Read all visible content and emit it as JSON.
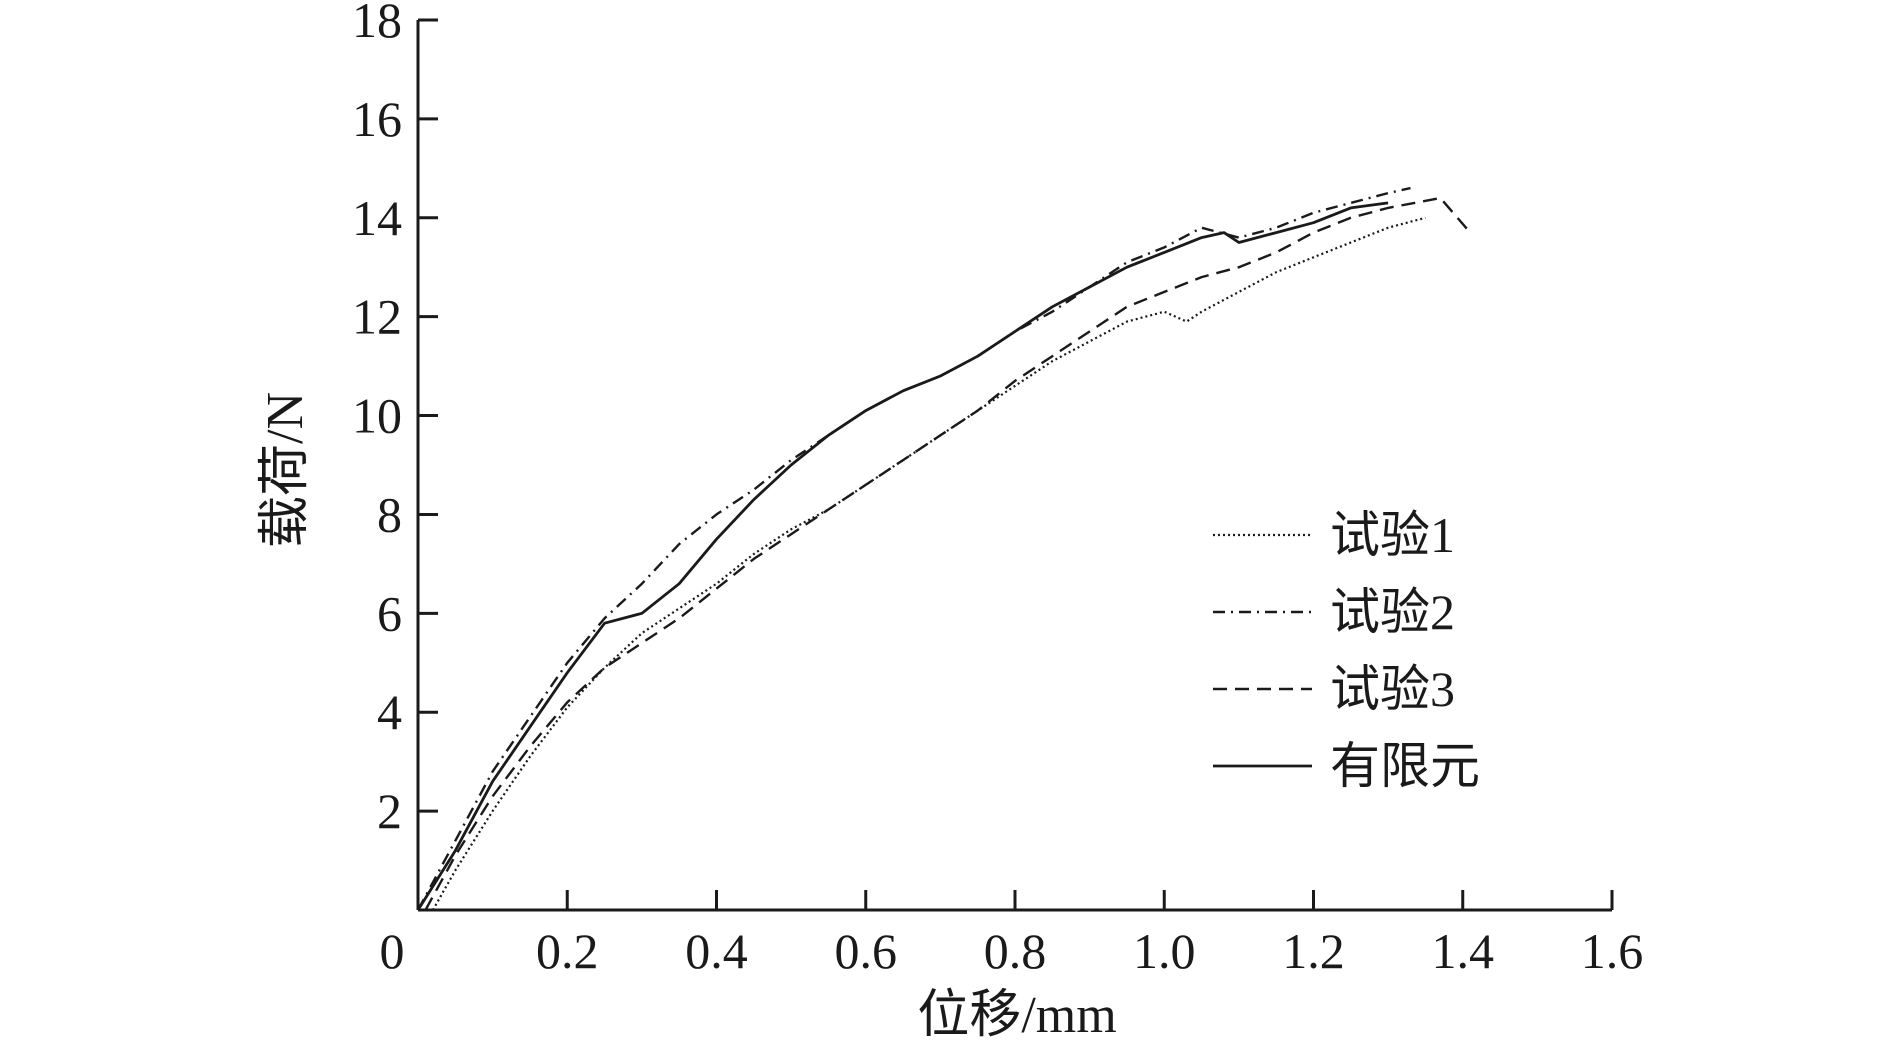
{
  "chart_data": {
    "type": "line",
    "title": "",
    "xlabel": "位移/mm",
    "ylabel": "载荷/N",
    "xlim": [
      0,
      1.6
    ],
    "ylim": [
      0,
      18
    ],
    "x_ticks": [
      0,
      0.2,
      0.4,
      0.6,
      0.8,
      1.0,
      1.2,
      1.4,
      1.6
    ],
    "x_tick_labels": [
      "0",
      "0.2",
      "0.4",
      "0.6",
      "0.8",
      "1.0",
      "1.2",
      "1.4",
      "1.6"
    ],
    "y_ticks": [
      2,
      4,
      6,
      8,
      10,
      12,
      14,
      16,
      18
    ],
    "y_tick_labels": [
      "2",
      "4",
      "6",
      "8",
      "10",
      "12",
      "14",
      "16",
      "18"
    ],
    "grid": false,
    "legend_position": "right",
    "series": [
      {
        "name": "试验1",
        "line_style": "dotted",
        "x": [
          0.02,
          0.05,
          0.1,
          0.15,
          0.2,
          0.25,
          0.3,
          0.35,
          0.4,
          0.45,
          0.5,
          0.55,
          0.6,
          0.65,
          0.7,
          0.75,
          0.8,
          0.85,
          0.9,
          0.95,
          1.0,
          1.03,
          1.05,
          1.1,
          1.15,
          1.2,
          1.25,
          1.3,
          1.35
        ],
        "y": [
          0,
          0.8,
          2.0,
          3.1,
          4.1,
          4.9,
          5.6,
          6.1,
          6.6,
          7.2,
          7.7,
          8.1,
          8.6,
          9.1,
          9.6,
          10.1,
          10.6,
          11.1,
          11.5,
          11.9,
          12.1,
          11.9,
          12.1,
          12.5,
          12.9,
          13.2,
          13.5,
          13.8,
          14.0
        ]
      },
      {
        "name": "试验2",
        "line_style": "dashdot",
        "x": [
          0,
          0.05,
          0.1,
          0.15,
          0.2,
          0.25,
          0.3,
          0.35,
          0.4,
          0.45,
          0.5,
          0.55,
          0.6,
          0.65,
          0.7,
          0.75,
          0.8,
          0.85,
          0.9,
          0.95,
          1.0,
          1.05,
          1.1,
          1.15,
          1.2,
          1.25,
          1.3,
          1.33
        ],
        "y": [
          0,
          1.4,
          2.8,
          3.9,
          5.0,
          5.9,
          6.6,
          7.4,
          8.0,
          8.5,
          9.1,
          9.6,
          10.1,
          10.5,
          10.8,
          11.2,
          11.7,
          12.1,
          12.6,
          13.1,
          13.4,
          13.8,
          13.6,
          13.8,
          14.1,
          14.3,
          14.5,
          14.6
        ]
      },
      {
        "name": "试验3",
        "line_style": "dashed",
        "x": [
          0.01,
          0.05,
          0.1,
          0.15,
          0.2,
          0.25,
          0.3,
          0.35,
          0.4,
          0.45,
          0.5,
          0.55,
          0.6,
          0.65,
          0.7,
          0.75,
          0.8,
          0.85,
          0.9,
          0.95,
          1.0,
          1.05,
          1.1,
          1.15,
          1.2,
          1.25,
          1.3,
          1.37,
          1.41
        ],
        "y": [
          0,
          1.1,
          2.3,
          3.3,
          4.2,
          4.9,
          5.4,
          5.9,
          6.5,
          7.1,
          7.6,
          8.1,
          8.6,
          9.1,
          9.6,
          10.1,
          10.7,
          11.2,
          11.7,
          12.2,
          12.5,
          12.8,
          13.0,
          13.3,
          13.7,
          14.0,
          14.2,
          14.4,
          13.7
        ]
      },
      {
        "name": "有限元",
        "line_style": "solid",
        "x": [
          0,
          0.05,
          0.1,
          0.15,
          0.2,
          0.25,
          0.3,
          0.35,
          0.4,
          0.45,
          0.5,
          0.55,
          0.6,
          0.65,
          0.7,
          0.75,
          0.8,
          0.85,
          0.9,
          0.95,
          1.0,
          1.05,
          1.08,
          1.1,
          1.15,
          1.2,
          1.25,
          1.3
        ],
        "y": [
          0,
          1.2,
          2.6,
          3.7,
          4.8,
          5.8,
          6.0,
          6.6,
          7.5,
          8.3,
          9.0,
          9.6,
          10.1,
          10.5,
          10.8,
          11.2,
          11.7,
          12.2,
          12.6,
          13.0,
          13.3,
          13.6,
          13.7,
          13.5,
          13.7,
          13.9,
          14.2,
          14.3
        ]
      }
    ]
  }
}
